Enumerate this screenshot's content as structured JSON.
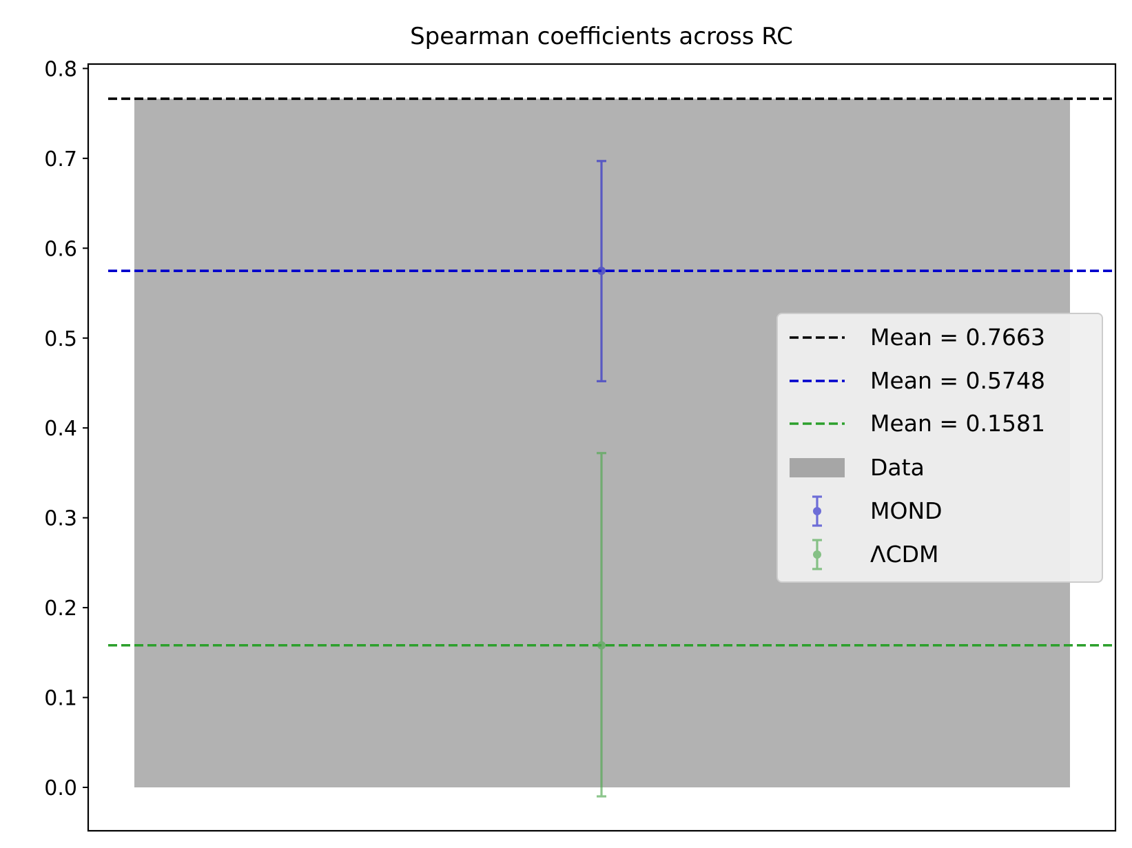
{
  "chart_data": {
    "type": "bar",
    "title": "Spearman coefficients across RC",
    "xlabel": "",
    "ylabel": "",
    "ylim": [
      -0.048,
      0.805
    ],
    "yticks": [
      0.0,
      0.1,
      0.2,
      0.3,
      0.4,
      0.5,
      0.6,
      0.7,
      0.8
    ],
    "ytick_labels": [
      "0.0",
      "0.1",
      "0.2",
      "0.3",
      "0.4",
      "0.5",
      "0.6",
      "0.7",
      "0.8"
    ],
    "grid": false,
    "legend_position": "center-right",
    "bar": {
      "name": "Data",
      "value": 0.7663,
      "color": "#b2b2b2"
    },
    "hlines": [
      {
        "label": "Mean = 0.7663",
        "y": 0.7663,
        "color": "#000000"
      },
      {
        "label": "Mean = 0.5748",
        "y": 0.5748,
        "color": "#0000cc"
      },
      {
        "label": "Mean = 0.1581",
        "y": 0.1581,
        "color": "#2ca02c"
      }
    ],
    "errorbars": [
      {
        "name": "MOND",
        "y": 0.5748,
        "lower": 0.452,
        "upper": 0.697,
        "color": "#2a2acc"
      },
      {
        "name": "ΛCDM",
        "y": 0.1581,
        "lower": -0.01,
        "upper": 0.372,
        "color": "#4fa94f"
      }
    ],
    "legend": [
      "Mean = 0.7663",
      "Mean = 0.5748",
      "Mean = 0.1581",
      "Data",
      "MOND",
      "ΛCDM"
    ]
  }
}
